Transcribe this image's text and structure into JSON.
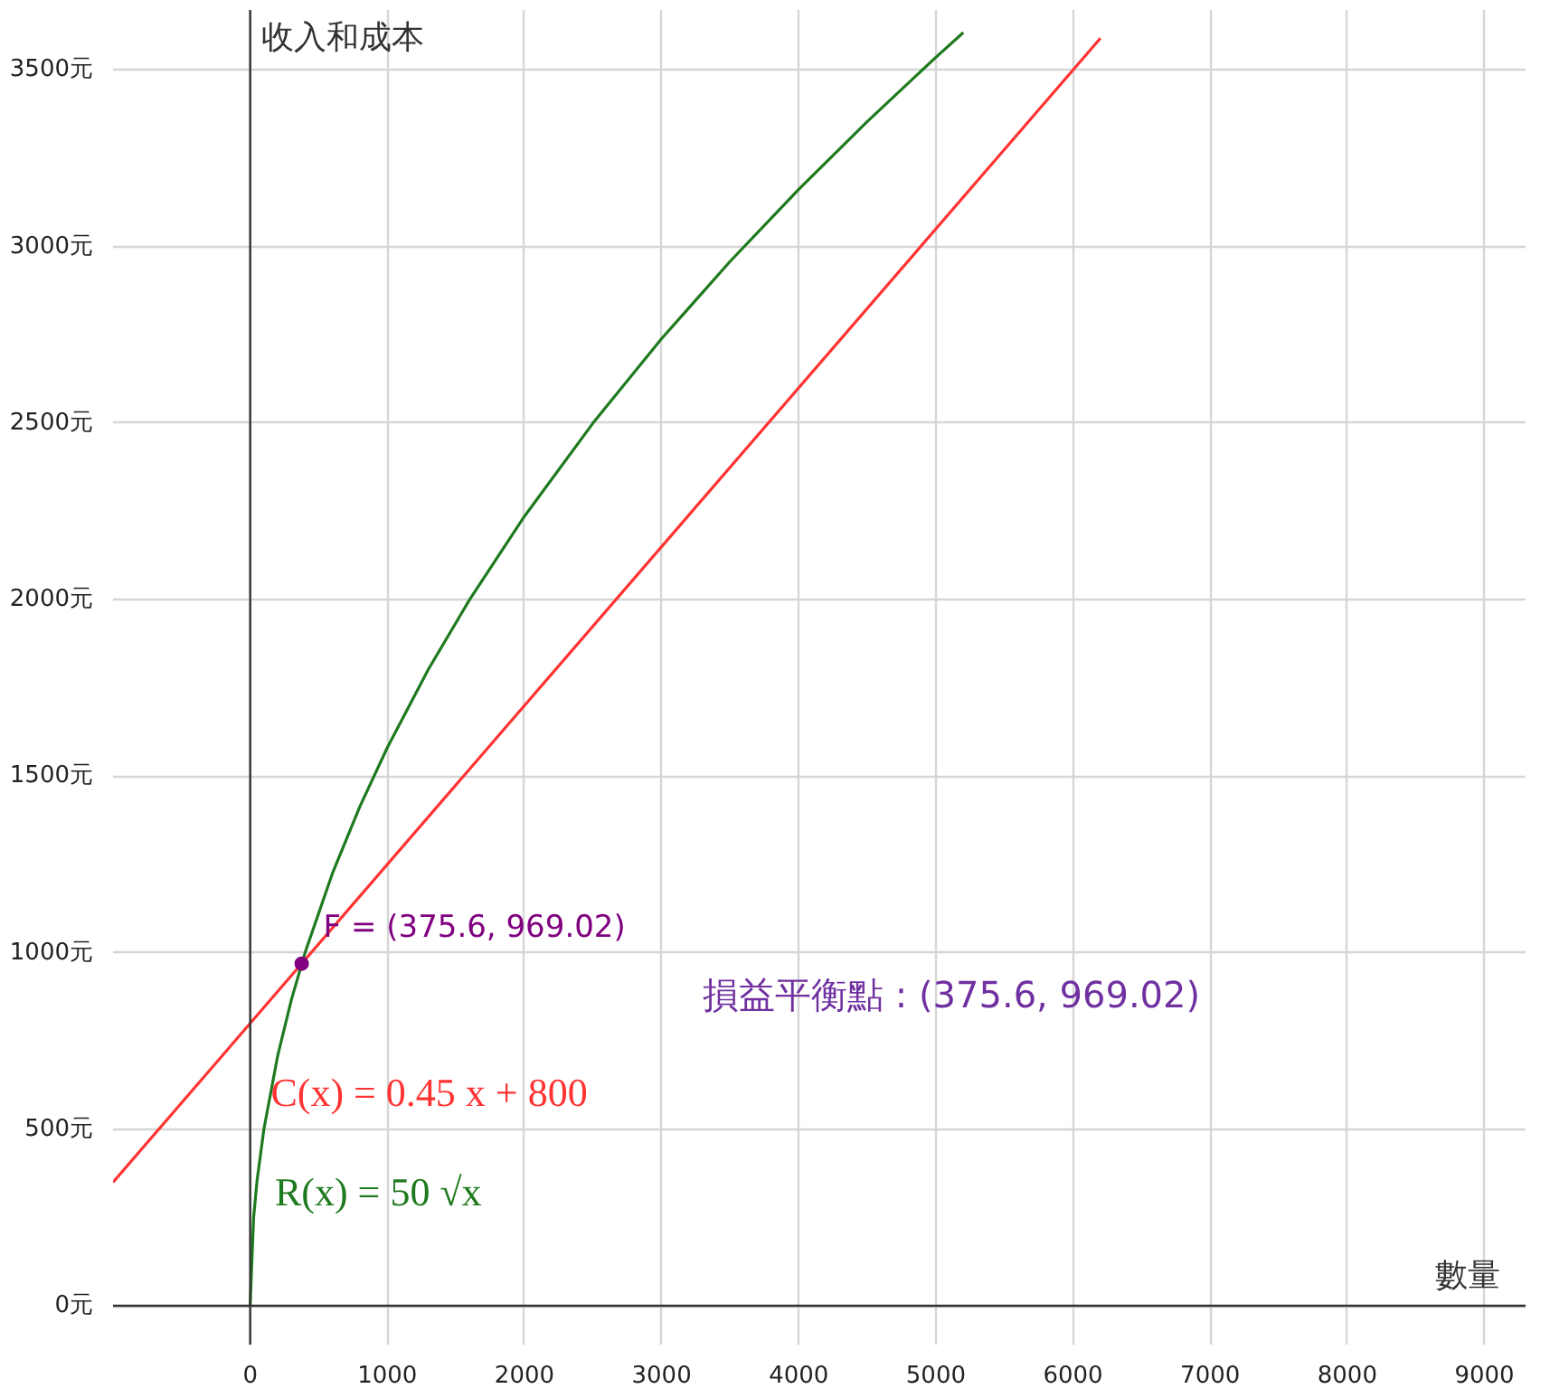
{
  "chart_data": {
    "type": "line",
    "xlabel": "數量",
    "ylabel": "收入和成本",
    "xlim": [
      -1000,
      9300
    ],
    "ylim": [
      -110,
      3670
    ],
    "xticks": [
      0,
      1000,
      2000,
      3000,
      4000,
      5000,
      6000,
      7000,
      8000,
      9000
    ],
    "yticks": [
      {
        "value": 0,
        "label": "0元"
      },
      {
        "value": 500,
        "label": "500元"
      },
      {
        "value": 1000,
        "label": "1000元"
      },
      {
        "value": 1500,
        "label": "1500元"
      },
      {
        "value": 2000,
        "label": "2000元"
      },
      {
        "value": 2500,
        "label": "2500元"
      },
      {
        "value": 3000,
        "label": "3000元"
      },
      {
        "value": 3500,
        "label": "3500元"
      }
    ],
    "grid": true,
    "series": [
      {
        "name": "C(x) = 0.45 x + 800",
        "color": "#ff3333",
        "x": [
          -1000,
          6200
        ],
        "values": [
          350,
          3590
        ]
      },
      {
        "name": "R(x) = 50 √x",
        "color": "#1e7a1e",
        "x": [
          0,
          25,
          50,
          100,
          200,
          300,
          400,
          600,
          800,
          1000,
          1300,
          1600,
          2000,
          2500,
          3000,
          3500,
          4000,
          4500,
          5000,
          5200
        ],
        "values": [
          0,
          250,
          354,
          500,
          707,
          866,
          1000,
          1225,
          1414,
          1581,
          1803,
          2000,
          2236,
          2500,
          2739,
          2958,
          3162,
          3354,
          3536,
          3606
        ]
      },
      {
        "type": "scatter",
        "name": "F = (375.6, 969.02)",
        "color": "#800080",
        "marker": "circle",
        "x": [
          375.6
        ],
        "values": [
          969.02
        ]
      }
    ],
    "annotations": [
      "損益平衡點 : (375.6, 969.02)"
    ]
  }
}
